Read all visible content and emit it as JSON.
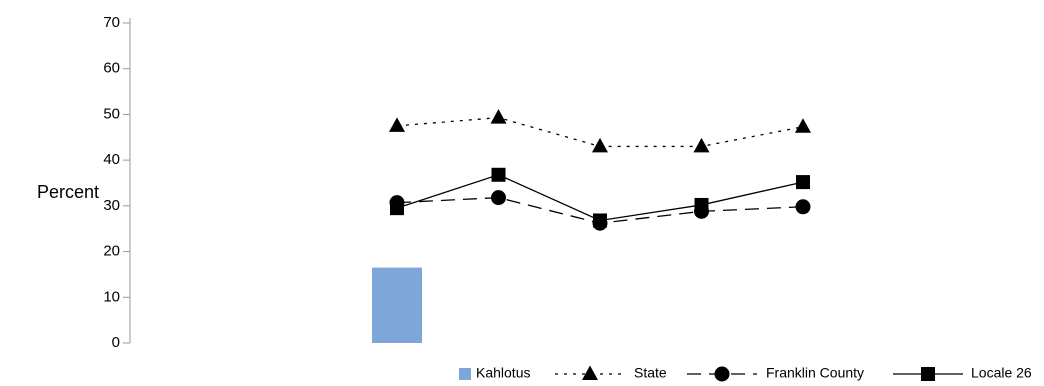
{
  "chart_data": {
    "type": "bar",
    "ylabel": "Percent",
    "ylim": [
      0,
      70
    ],
    "yticks": [
      0,
      10,
      20,
      30,
      40,
      50,
      60,
      70
    ],
    "grid": false,
    "legend_position": "bottom-right",
    "x": [
      1,
      2,
      3,
      4,
      5
    ],
    "series": [
      {
        "name": "Kahlotus",
        "kind": "bar",
        "color": "#7ea6d9",
        "values": [
          16.5,
          null,
          null,
          null,
          null
        ]
      },
      {
        "name": "State",
        "kind": "line",
        "marker": "triangle",
        "dash": "dotted",
        "color": "#000000",
        "values": [
          47.5,
          49.3,
          43.0,
          43.0,
          47.3
        ]
      },
      {
        "name": "Franklin County",
        "kind": "line",
        "marker": "circle",
        "dash": "dashed",
        "color": "#000000",
        "values": [
          30.7,
          31.8,
          26.2,
          28.8,
          29.8
        ]
      },
      {
        "name": "Locale 26",
        "kind": "line",
        "marker": "square",
        "dash": "solid",
        "color": "#000000",
        "values": [
          29.5,
          36.8,
          26.8,
          30.2,
          35.2
        ]
      }
    ]
  }
}
